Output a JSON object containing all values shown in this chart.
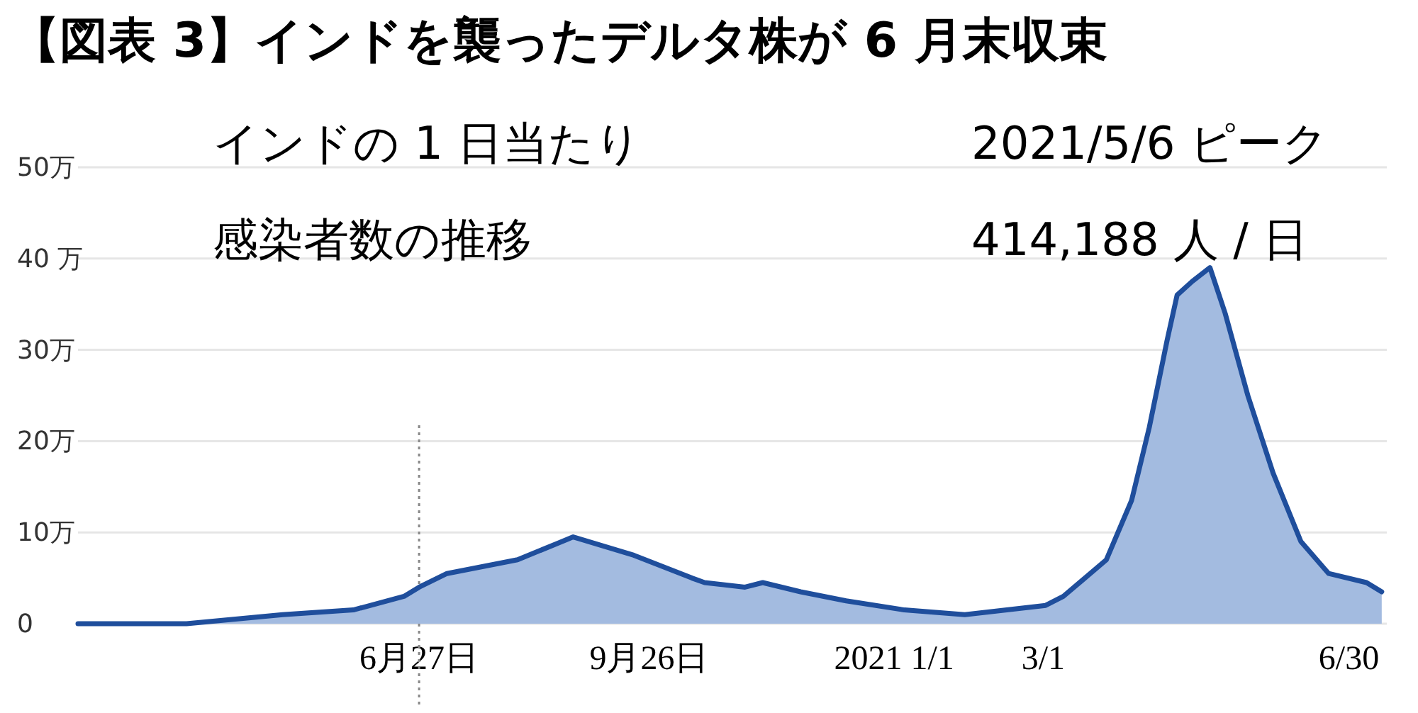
{
  "chart_data": {
    "type": "area",
    "title": "【図表 3】インドを襲ったデルタ株が 6 月末収束",
    "annotations": [
      "インドの 1 日当たり",
      "感染者数の推移",
      "2021/5/6 ピーク",
      "414,188 人 / 日"
    ],
    "series": [
      {
        "color": "#1f4e9c",
        "x": [
          "2020-02-13",
          "2020-03-27",
          "2020-05-04",
          "2020-06-01",
          "2020-06-21",
          "2020-06-27",
          "2020-07-08",
          "2020-08-05",
          "2020-08-27",
          "2020-09-20",
          "2020-10-13",
          "2020-10-18",
          "2020-11-03",
          "2020-11-10",
          "2020-11-25",
          "2020-12-13",
          "2021-01-05",
          "2021-01-29",
          "2021-03-02",
          "2021-03-09",
          "2021-03-26",
          "2021-04-05",
          "2021-04-12",
          "2021-04-19",
          "2021-04-23",
          "2021-04-29",
          "2021-05-06",
          "2021-05-12",
          "2021-05-21",
          "2021-05-31",
          "2021-06-11",
          "2021-06-22",
          "2021-07-07",
          "2021-07-13"
        ],
        "values": [
          0,
          0,
          1,
          1.5,
          3,
          4,
          5.5,
          7,
          9.5,
          7.5,
          5,
          4.5,
          4,
          4.5,
          3.5,
          2.5,
          1.5,
          1,
          2,
          3,
          7,
          13.5,
          21.5,
          31,
          36,
          37.5,
          39,
          34,
          25,
          16.5,
          9,
          5.5,
          4.5,
          3.5
        ]
      }
    ],
    "xlim": [
      "2020-02-13",
      "2021-07-15"
    ],
    "xticks": [
      {
        "value": "2020-06-27",
        "label": "6月27日"
      },
      {
        "value": "2020-09-26",
        "label": "9月26日"
      },
      {
        "value": "2021-01-01",
        "label": "2021  1/1"
      },
      {
        "value": "2021-03-01",
        "label": "3/1"
      },
      {
        "value": "2021-06-30",
        "label": "6/30"
      }
    ],
    "ylim": [
      0,
      50
    ],
    "yticks": [
      {
        "value": 0,
        "label": "0"
      },
      {
        "value": 10,
        "label": "10万"
      },
      {
        "value": 20,
        "label": "20万"
      },
      {
        "value": 30,
        "label": "30万"
      },
      {
        "value": 40,
        "label": "40 万"
      },
      {
        "value": 50,
        "label": "50万"
      }
    ],
    "ref_lines": [
      {
        "axis": "x",
        "value": "2020-06-27",
        "color": "#888888",
        "line_style": "dotted"
      }
    ],
    "grid": "y",
    "marker": "none",
    "line_style": "solid"
  }
}
